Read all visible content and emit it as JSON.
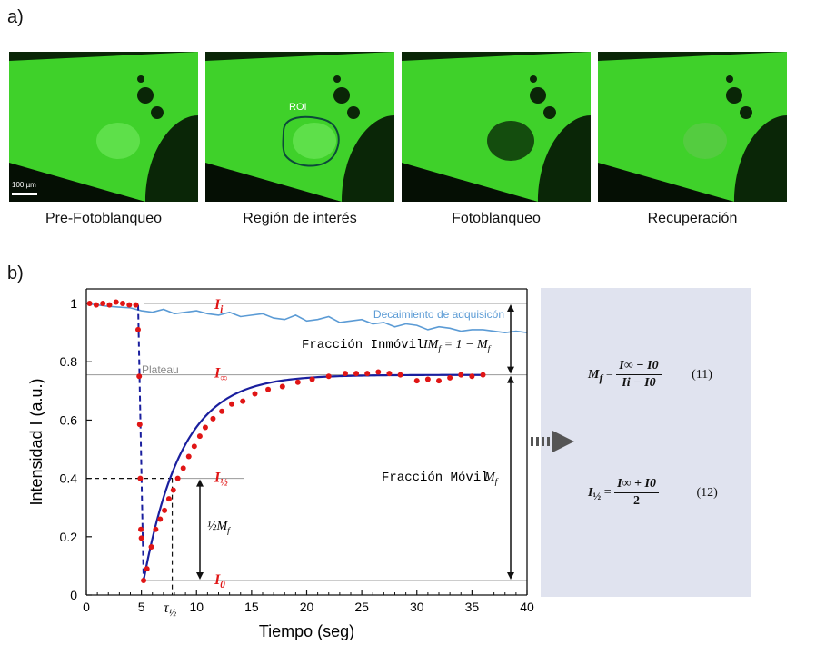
{
  "panel_a_label": "a)",
  "panel_b_label": "b)",
  "micrographs": [
    {
      "caption": "Pre-Fotoblanqueo",
      "scale_bar": "100 µm",
      "roi_label": "",
      "nucleus": "bright"
    },
    {
      "caption": "Región de interés",
      "scale_bar": "",
      "roi_label": "ROI",
      "nucleus": "bright"
    },
    {
      "caption": "Fotoblanqueo",
      "scale_bar": "",
      "roi_label": "",
      "nucleus": "dark"
    },
    {
      "caption": "Recuperación",
      "scale_bar": "",
      "roi_label": "",
      "nucleus": "mid"
    }
  ],
  "colors": {
    "cell_green": "#3fd12a",
    "fit_line": "#1a1f9e",
    "data_points": "#e01515",
    "decay_line": "#5b9bd5",
    "ref_lines": "#888888",
    "eq_box": "#e0e3ef"
  },
  "chart_data": {
    "type": "scatter",
    "xlabel": "Tiempo (seg)",
    "ylabel": "Intensidad I (a.u.)",
    "xlim": [
      0,
      40
    ],
    "ylim": [
      0,
      1.05
    ],
    "xticks": [
      0,
      5,
      10,
      15,
      20,
      25,
      30,
      35,
      40
    ],
    "yticks": [
      0,
      0.2,
      0.4,
      0.6,
      0.8,
      1
    ],
    "grid": false,
    "series": [
      {
        "kind": "points",
        "x": [
          0.3,
          0.9,
          1.5,
          2.1,
          2.7,
          3.3,
          3.9,
          4.5,
          4.7,
          4.8,
          4.85,
          4.9,
          4.95,
          5.0,
          5.2,
          5.5,
          5.9,
          6.3,
          6.7,
          7.1,
          7.5,
          7.9,
          8.3,
          8.8,
          9.3,
          9.8,
          10.3,
          10.8,
          11.5,
          12.3,
          13.2,
          14.2,
          15.3,
          16.5,
          17.8,
          19.2,
          20.5,
          22.0,
          23.5,
          24.5,
          25.5,
          26.5,
          27.5,
          28.5,
          30.0,
          31.0,
          32.0,
          33.0,
          34.0,
          35.0,
          36.0
        ],
        "y": [
          1.0,
          0.995,
          1.0,
          0.995,
          1.005,
          1.0,
          0.995,
          0.995,
          0.91,
          0.75,
          0.585,
          0.4,
          0.225,
          0.195,
          0.05,
          0.09,
          0.165,
          0.225,
          0.26,
          0.29,
          0.33,
          0.36,
          0.4,
          0.435,
          0.475,
          0.51,
          0.545,
          0.575,
          0.605,
          0.63,
          0.655,
          0.665,
          0.69,
          0.705,
          0.715,
          0.73,
          0.74,
          0.75,
          0.76,
          0.76,
          0.76,
          0.765,
          0.76,
          0.755,
          0.735,
          0.74,
          0.735,
          0.745,
          0.755,
          0.75,
          0.755
        ]
      },
      {
        "kind": "fit",
        "x0": 5.2,
        "y0": 0.05,
        "plateau": 0.755,
        "tau": 3.5
      },
      {
        "kind": "drop",
        "x": [
          4.7,
          5.2
        ],
        "y": [
          0.995,
          0.05
        ]
      },
      {
        "kind": "decay",
        "x": [
          0,
          2,
          4,
          5,
          6,
          7,
          8,
          9,
          10,
          11,
          12,
          13,
          14,
          15,
          16,
          17,
          18,
          19,
          20,
          21,
          22,
          23,
          24,
          25,
          26,
          27,
          28,
          29,
          30,
          31,
          32,
          33,
          34,
          35,
          36,
          37,
          38,
          39,
          40
        ],
        "y": [
          1.0,
          0.99,
          0.985,
          0.975,
          0.97,
          0.98,
          0.965,
          0.97,
          0.975,
          0.965,
          0.96,
          0.97,
          0.955,
          0.96,
          0.965,
          0.95,
          0.945,
          0.96,
          0.94,
          0.945,
          0.955,
          0.935,
          0.94,
          0.945,
          0.93,
          0.935,
          0.92,
          0.93,
          0.925,
          0.91,
          0.92,
          0.915,
          0.905,
          0.91,
          0.91,
          0.905,
          0.9,
          0.905,
          0.9
        ]
      }
    ],
    "reference_lines": {
      "Ii": {
        "y": 1.0,
        "label": "I",
        "sub": "i"
      },
      "Iinf": {
        "y": 0.755,
        "label": "I",
        "sub": "∞"
      },
      "Ihalf": {
        "y": 0.4,
        "label": "I",
        "sub": "½"
      },
      "I0": {
        "y": 0.05,
        "label": "I",
        "sub": "0"
      }
    },
    "annotations": {
      "decay": "Decaimiento de adquisicón",
      "plateau": "Plateau",
      "inmovil": "Fracción Inmóvil",
      "inmovil_eq_lhs": "IM",
      "inmovil_eq_sub": "f",
      "inmovil_eq_rhs": " = 1 − M",
      "movil": "Fracción Móvil",
      "movil_sym": "M",
      "movil_sub": "f",
      "half_mf": "½M",
      "tau": "τ",
      "tau_sub": "½",
      "tau_x": 7.8
    }
  },
  "equations": {
    "eq11": {
      "lhs": "M",
      "lhs_sub": "f",
      "num": "I∞ − I0",
      "den": "Ii − I0",
      "number": "(11)"
    },
    "eq12": {
      "lhs": "I",
      "lhs_sub": "½",
      "num": "I∞ + I0",
      "den": "2",
      "number": "(12)"
    }
  }
}
